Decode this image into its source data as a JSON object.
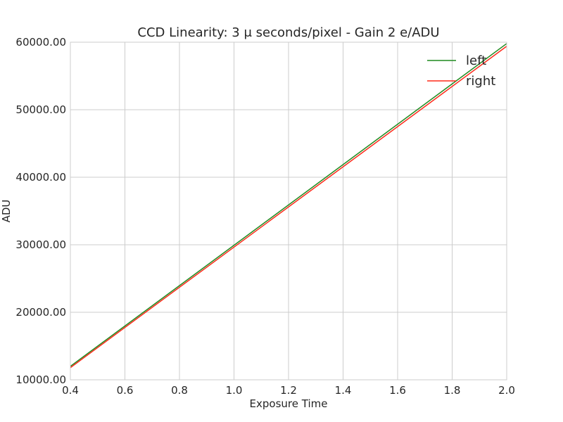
{
  "chart_data": {
    "type": "line",
    "title": "CCD Linearity:  3 μ seconds/pixel - Gain 2 e/ADU",
    "xlabel": "Exposure Time",
    "ylabel": "ADU",
    "xlim": [
      0.4,
      2.0
    ],
    "ylim": [
      10000,
      60000
    ],
    "x_ticks": [
      "0.4",
      "0.6",
      "0.8",
      "1.0",
      "1.2",
      "1.4",
      "1.6",
      "1.8",
      "2.0"
    ],
    "y_ticks": [
      "10000.00",
      "20000.00",
      "30000.00",
      "40000.00",
      "50000.00",
      "60000.00"
    ],
    "grid": true,
    "legend_position": "top-right",
    "series": [
      {
        "name": "left",
        "color": "#1f8a1f",
        "x": [
          0.4,
          2.0
        ],
        "y": [
          12000,
          59800
        ]
      },
      {
        "name": "right",
        "color": "#ff2a1a",
        "x": [
          0.4,
          2.0
        ],
        "y": [
          11800,
          59400
        ]
      }
    ]
  }
}
